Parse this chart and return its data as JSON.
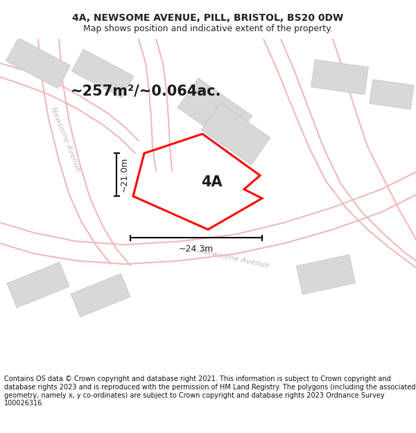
{
  "title": "4A, NEWSOME AVENUE, PILL, BRISTOL, BS20 0DW",
  "subtitle": "Map shows position and indicative extent of the property.",
  "footer": "Contains OS data © Crown copyright and database right 2021. This information is subject to Crown copyright and database rights 2023 and is reproduced with the permission of HM Land Registry. The polygons (including the associated geometry, namely x, y co-ordinates) are subject to Crown copyright and database rights 2023 Ordnance Survey 100026316.",
  "area_label": "~257m²/~0.064ac.",
  "width_label": "~24.3m",
  "height_label": "~21.0m",
  "plot_label": "4A",
  "map_bg_color": "#ffffff",
  "building_color": "#d8d8d8",
  "building_edge_color": "#c0c0c0",
  "road_color": "#f2b8b8",
  "plot_outline_color": "#ff0000",
  "title_fontsize": 10,
  "subtitle_fontsize": 9,
  "footer_fontsize": 7,
  "area_label_fontsize": 15,
  "measurement_fontsize": 9,
  "plot_label_fontsize": 15,
  "road_label_color": "#c8b8b8",
  "road_label_fontsize": 8
}
